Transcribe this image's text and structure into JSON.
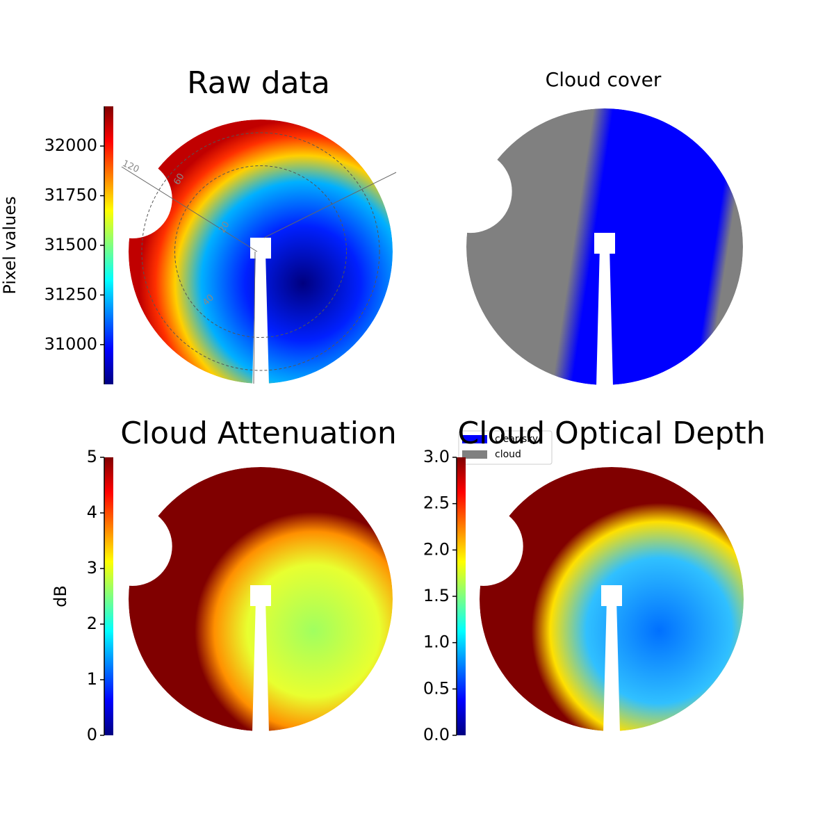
{
  "chart_data": [
    {
      "type": "image",
      "title": "Raw data",
      "colormap": "jet",
      "colorbar_label": "Pixel values",
      "ylim": [
        30800,
        32200
      ],
      "yticks": [
        31000,
        31250,
        31500,
        31750,
        32000
      ],
      "annotations": [
        "120",
        "60",
        "20",
        "40"
      ]
    },
    {
      "type": "image",
      "title": "Cloud cover",
      "series": [
        {
          "name": "clear sky",
          "color": "#0000ff"
        },
        {
          "name": "cloud",
          "color": "#808080"
        }
      ]
    },
    {
      "type": "image",
      "title": "Cloud Attenuation",
      "colormap": "jet",
      "colorbar_label": "dB",
      "ylim": [
        0,
        5
      ],
      "yticks": [
        0,
        1,
        2,
        3,
        4,
        5
      ]
    },
    {
      "type": "image",
      "title": "Cloud Optical Depth",
      "colormap": "jet",
      "ylim": [
        0,
        3
      ],
      "yticks": [
        {
          "value": 0,
          "label": "0.0"
        },
        {
          "value": 0.5,
          "label": "0.5"
        },
        {
          "value": 1,
          "label": "1.0"
        },
        {
          "value": 1.5,
          "label": "1.5"
        },
        {
          "value": 2,
          "label": "2.0"
        },
        {
          "value": 2.5,
          "label": "2.5"
        },
        {
          "value": 3,
          "label": "3.0"
        }
      ]
    }
  ]
}
